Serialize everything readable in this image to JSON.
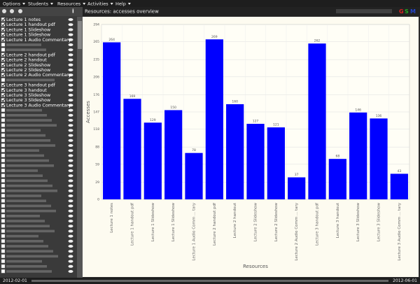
{
  "menu": [
    "Options",
    "Students",
    "Resources",
    "Activities",
    "Help"
  ],
  "logo": [
    "G",
    "S",
    "M"
  ],
  "sidebar": {
    "info": "i",
    "items": [
      "Lecture 1 notes",
      "Lecture 1 handout pdf",
      "Lecture 1 Slideshow",
      "Lecture 1 Slideshow",
      "Lecture 1 Audio Commentary",
      "Lecture 2 handout pdf",
      "Lecture 2 handout",
      "Lecture 2 Slideshow",
      "Lecture 2 Slideshow",
      "Lecture 2 Audio Commentary",
      "Lecture 3 handout pdf",
      "Lecture 3 handout",
      "Lecture 3 Slideshow",
      "Lecture 3 Slideshow",
      "Lecture 3 Audio Commentary"
    ]
  },
  "header": "Resources: accesses overview",
  "footer": {
    "start": "2012-02-01",
    "end": "2012-06-01"
  },
  "chart_data": {
    "type": "bar",
    "x_label": "Resources",
    "y_label": "Accesses",
    "color": "#0000ff",
    "grid": true,
    "categories": [
      "Lecture 1 notes",
      "Lecture 1 handout pdf",
      "Lecture 1 Slideshow",
      "Lecture 1 Slideshow",
      "Lecture 1 Audio Comm ... tary",
      "Lecture 2 handout pdf",
      "Lecture 2 handout",
      "Lecture 2 Slideshow",
      "Lecture 2 Slideshow",
      "Lecture 2 Audio Comm ... tary",
      "Lecture 3 handout pdf",
      "Lecture 3 handout",
      "Lecture 3 Slideshow",
      "Lecture 3 Slideshow",
      "Lecture 3 Audio Comm ... tary"
    ],
    "values": [
      264,
      169,
      129,
      150,
      78,
      269,
      160,
      127,
      121,
      37,
      262,
      68,
      146,
      136,
      43
    ],
    "ylim": [
      0,
      294
    ],
    "yticks": [
      0,
      29,
      59,
      88,
      118,
      147,
      176,
      206,
      235,
      265,
      294
    ]
  }
}
